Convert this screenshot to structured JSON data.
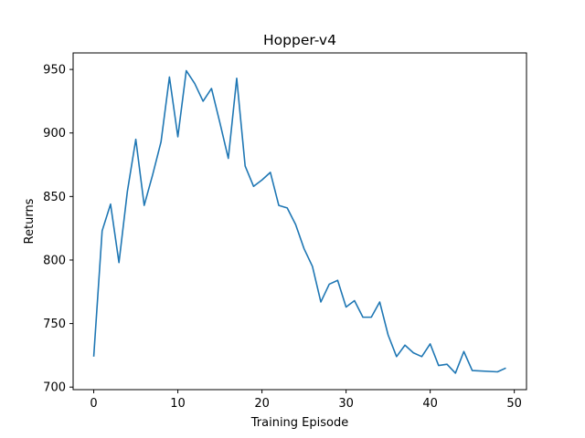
{
  "chart_data": {
    "type": "line",
    "title": "Hopper-v4",
    "xlabel": "Training Episode",
    "ylabel": "Returns",
    "xlim": [
      -2.45,
      51.45
    ],
    "ylim": [
      698,
      963
    ],
    "xticks": [
      0,
      10,
      20,
      30,
      40,
      50
    ],
    "yticks": [
      700,
      750,
      800,
      850,
      900,
      950
    ],
    "grid": false,
    "legend": "none",
    "series": [
      {
        "color": "#1f77b4",
        "x": [
          0,
          1,
          2,
          3,
          4,
          5,
          6,
          7,
          8,
          9,
          10,
          11,
          12,
          13,
          14,
          15,
          16,
          17,
          18,
          19,
          20,
          21,
          22,
          23,
          24,
          25,
          26,
          27,
          28,
          29,
          30,
          31,
          32,
          33,
          34,
          35,
          36,
          37,
          38,
          39,
          40,
          41,
          42,
          43,
          44,
          45,
          48,
          49
        ],
        "y": [
          724,
          823,
          844,
          798,
          854,
          895,
          843,
          867,
          893,
          944,
          897,
          949,
          939,
          925,
          935,
          908,
          880,
          943,
          874,
          858,
          863,
          869,
          843,
          841,
          828,
          809,
          795,
          767,
          781,
          784,
          763,
          768,
          755,
          755,
          767,
          741,
          724,
          733,
          727,
          724,
          734,
          717,
          718,
          711,
          728,
          713,
          712,
          715
        ]
      }
    ]
  }
}
